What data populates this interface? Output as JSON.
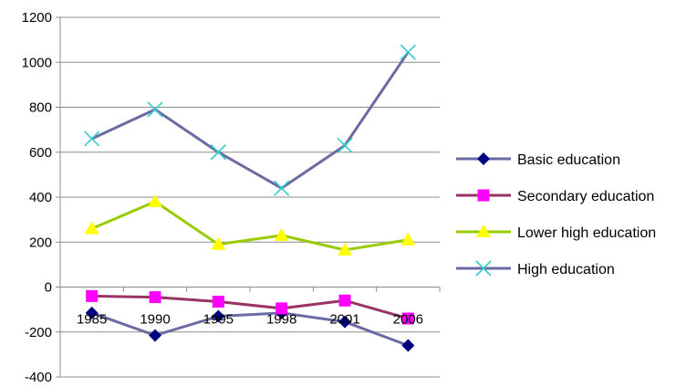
{
  "chart_data": {
    "type": "line",
    "title": "",
    "xlabel": "",
    "ylabel": "",
    "categories": [
      "1985",
      "1990",
      "1995",
      "1998",
      "2001",
      "2006"
    ],
    "ylim": [
      -400,
      1200
    ],
    "yticks": [
      -400,
      -200,
      0,
      200,
      400,
      600,
      800,
      1000,
      1200
    ],
    "ytick_labels": [
      "-400",
      "-200",
      "0",
      "200",
      "400",
      "600",
      "800",
      "1000",
      "1200"
    ],
    "grid": "horizontal",
    "legend_position": "right",
    "series": [
      {
        "name": "Basic education",
        "values": [
          -115,
          -215,
          -130,
          -115,
          -155,
          -260
        ],
        "line_color": "#6B6BA4",
        "marker": "diamond",
        "marker_color": "#000080"
      },
      {
        "name": "Secondary education",
        "values": [
          -40,
          -45,
          -65,
          -95,
          -60,
          -140
        ],
        "line_color": "#993366",
        "marker": "square",
        "marker_color": "#FF00FF"
      },
      {
        "name": "Lower high education",
        "values": [
          260,
          380,
          190,
          230,
          165,
          210
        ],
        "line_color": "#99CC00",
        "marker": "triangle",
        "marker_color": "#FFFF00"
      },
      {
        "name": "High education",
        "values": [
          660,
          790,
          600,
          440,
          630,
          1045
        ],
        "line_color": "#6B6BA4",
        "marker": "x",
        "marker_color": "#33CCCC"
      }
    ]
  }
}
